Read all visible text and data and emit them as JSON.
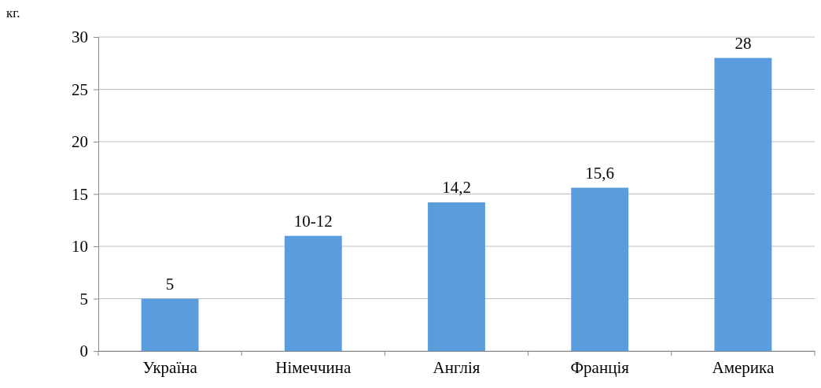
{
  "chart_data": {
    "type": "bar",
    "ylabel": "кг.",
    "categories": [
      "Україна",
      "Німеччина",
      "Англія",
      "Франція",
      "Америка"
    ],
    "values": [
      5,
      11,
      14.2,
      15.6,
      28
    ],
    "value_labels": [
      "5",
      "10-12",
      "14,2",
      "15,6",
      "28"
    ],
    "color": "#5b9ddc",
    "ylim": [
      0,
      30
    ],
    "yticks": [
      0,
      5,
      10,
      15,
      20,
      25,
      30
    ],
    "grid": "y"
  }
}
